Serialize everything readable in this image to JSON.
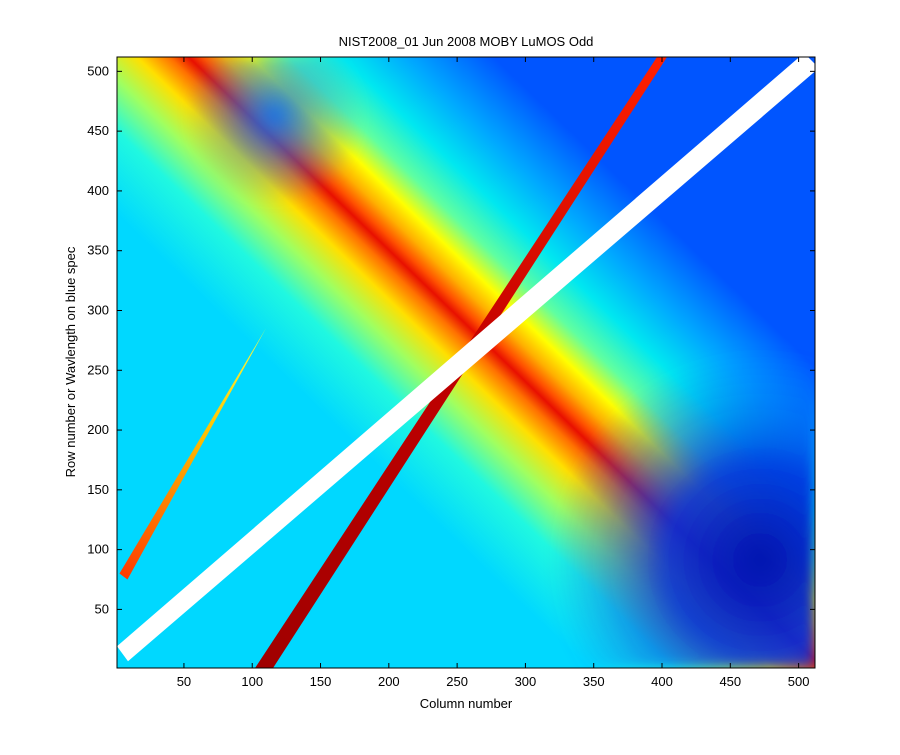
{
  "chart_data": {
    "type": "heatmap",
    "title": "NIST2008_01 Jun 2008 MOBY LuMOS Odd",
    "xlabel": "Column number",
    "ylabel": "Row number or Wavlength on blue spec",
    "xlim": [
      1,
      512
    ],
    "ylim": [
      1,
      512
    ],
    "x_ticks": [
      50,
      100,
      150,
      200,
      250,
      300,
      350,
      400,
      450,
      500
    ],
    "y_ticks": [
      50,
      100,
      150,
      200,
      250,
      300,
      350,
      400,
      450,
      500
    ],
    "colormap": "jet",
    "grid": false,
    "legend": "none",
    "features": {
      "main_diagonal": {
        "from": [
          1,
          10
        ],
        "to": [
          512,
          512
        ],
        "value": "masked (white)"
      },
      "ghost_streak_primary": {
        "from": [
          105,
          1
        ],
        "to": [
          400,
          512
        ],
        "value": "high"
      },
      "ghost_streak_secondary": {
        "from": [
          5,
          80
        ],
        "to": [
          110,
          285
        ],
        "value": "medium"
      },
      "low_region_right": {
        "center": [
          470,
          110
        ],
        "value": "low"
      },
      "low_region_top": {
        "center": [
          130,
          450
        ],
        "value": "low"
      }
    }
  }
}
